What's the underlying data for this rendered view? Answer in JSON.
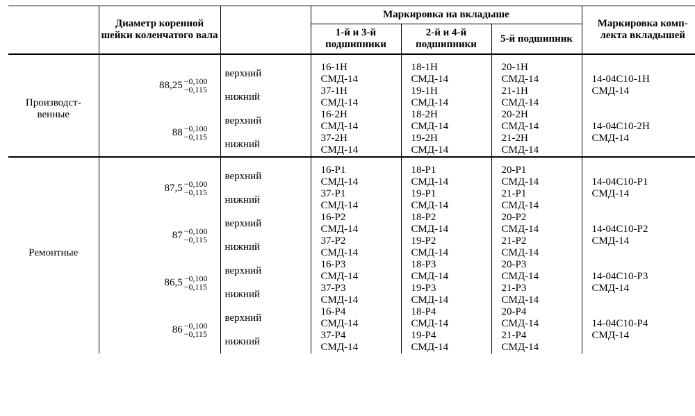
{
  "head": {
    "dia": "Диаметр коренной шейки коленчатого вала",
    "mark_group": "Маркировка на вкладыше",
    "m1": "1-й и 3-й подшипники",
    "m2": "2-й и 4-й подшипники",
    "m3": "5-й подшипник",
    "set": "Маркировка комп-\nлекта вкладышей"
  },
  "tol_up": "−0,100",
  "tol_lo": "−0,115",
  "smd": "СМД-14",
  "pos_top": "верхний",
  "pos_bot": "нижний",
  "sec1": {
    "label": "Производст-\nвенные",
    "g": [
      {
        "base": "88,25",
        "t": [
          "16-1Н",
          "18-1Н",
          "20-1Н"
        ],
        "b": [
          "37-1Н",
          "19-1Н",
          "21-1Н"
        ],
        "set": "14-04С10-1Н"
      },
      {
        "base": "88",
        "t": [
          "16-2Н",
          "18-2Н",
          "20-2Н"
        ],
        "b": [
          "37-2Н",
          "19-2Н",
          "21-2Н"
        ],
        "set": "14-04С10-2Н"
      }
    ]
  },
  "sec2": {
    "label": "Ремонтные",
    "g": [
      {
        "base": "87,5",
        "t": [
          "16-Р1",
          "18-Р1",
          "20-Р1"
        ],
        "b": [
          "37-Р1",
          "19-Р1",
          "21-Р1"
        ],
        "set": "14-04С10-Р1"
      },
      {
        "base": "87",
        "t": [
          "16-Р2",
          "18-Р2",
          "20-Р2"
        ],
        "b": [
          "37-Р2",
          "19-Р2",
          "21-Р2"
        ],
        "set": "14-04С10-Р2"
      },
      {
        "base": "86,5",
        "t": [
          "16-Р3",
          "18-Р3",
          "20-Р3"
        ],
        "b": [
          "37-Р3",
          "19-Р3",
          "21-Р3"
        ],
        "set": "14-04С10-Р3"
      },
      {
        "base": "86",
        "t": [
          "16-Р4",
          "18-Р4",
          "20-Р4"
        ],
        "b": [
          "37-Р4",
          "19-Р4",
          "21-Р4"
        ],
        "set": "14-04С10-Р4"
      }
    ]
  }
}
